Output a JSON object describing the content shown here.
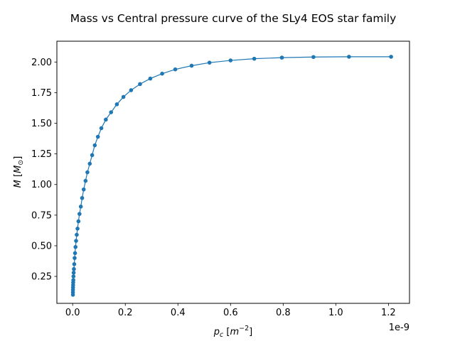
{
  "chart_data": {
    "type": "line",
    "title": "Mass vs Central pressure curve of the SLy4 EOS star family",
    "xlabel": "p_c [m^-2]",
    "ylabel": "M [M_⊙]",
    "x_offset_text": "1e-9",
    "x_scale": 1e-09,
    "xlim": [
      -0.06,
      1.28
    ],
    "ylim": [
      0.03,
      2.17
    ],
    "x_ticks": [
      0.0,
      0.2,
      0.4,
      0.6,
      0.8,
      1.0,
      1.2
    ],
    "x_tick_labels": [
      "0.0",
      "0.2",
      "0.4",
      "0.6",
      "0.8",
      "1.0",
      "1.2"
    ],
    "y_ticks": [
      0.25,
      0.5,
      0.75,
      1.0,
      1.25,
      1.5,
      1.75,
      2.0
    ],
    "y_tick_labels": [
      "0.25",
      "0.50",
      "0.75",
      "1.00",
      "1.25",
      "1.50",
      "1.75",
      "2.00"
    ],
    "grid": false,
    "legend": "none",
    "series": [
      {
        "color": "#1f77b4",
        "marker": "circle",
        "x": [
          0.001,
          0.001,
          0.0012,
          0.0014,
          0.0017,
          0.002,
          0.0025,
          0.003,
          0.0038,
          0.0047,
          0.006,
          0.0075,
          0.009,
          0.0108,
          0.013,
          0.0155,
          0.0185,
          0.022,
          0.026,
          0.031,
          0.036,
          0.042,
          0.049,
          0.056,
          0.065,
          0.074,
          0.084,
          0.096,
          0.109,
          0.126,
          0.146,
          0.168,
          0.193,
          0.222,
          0.256,
          0.295,
          0.34,
          0.39,
          0.452,
          0.52,
          0.6,
          0.69,
          0.795,
          0.915,
          1.05,
          1.21
        ],
        "y": [
          0.1,
          0.12,
          0.14,
          0.16,
          0.18,
          0.2,
          0.22,
          0.25,
          0.28,
          0.31,
          0.35,
          0.4,
          0.44,
          0.49,
          0.54,
          0.59,
          0.64,
          0.7,
          0.76,
          0.82,
          0.89,
          0.96,
          1.03,
          1.1,
          1.17,
          1.24,
          1.32,
          1.39,
          1.46,
          1.53,
          1.59,
          1.655,
          1.715,
          1.77,
          1.82,
          1.865,
          1.905,
          1.94,
          1.97,
          1.995,
          2.013,
          2.027,
          2.036,
          2.041,
          2.043,
          2.043
        ]
      }
    ]
  }
}
